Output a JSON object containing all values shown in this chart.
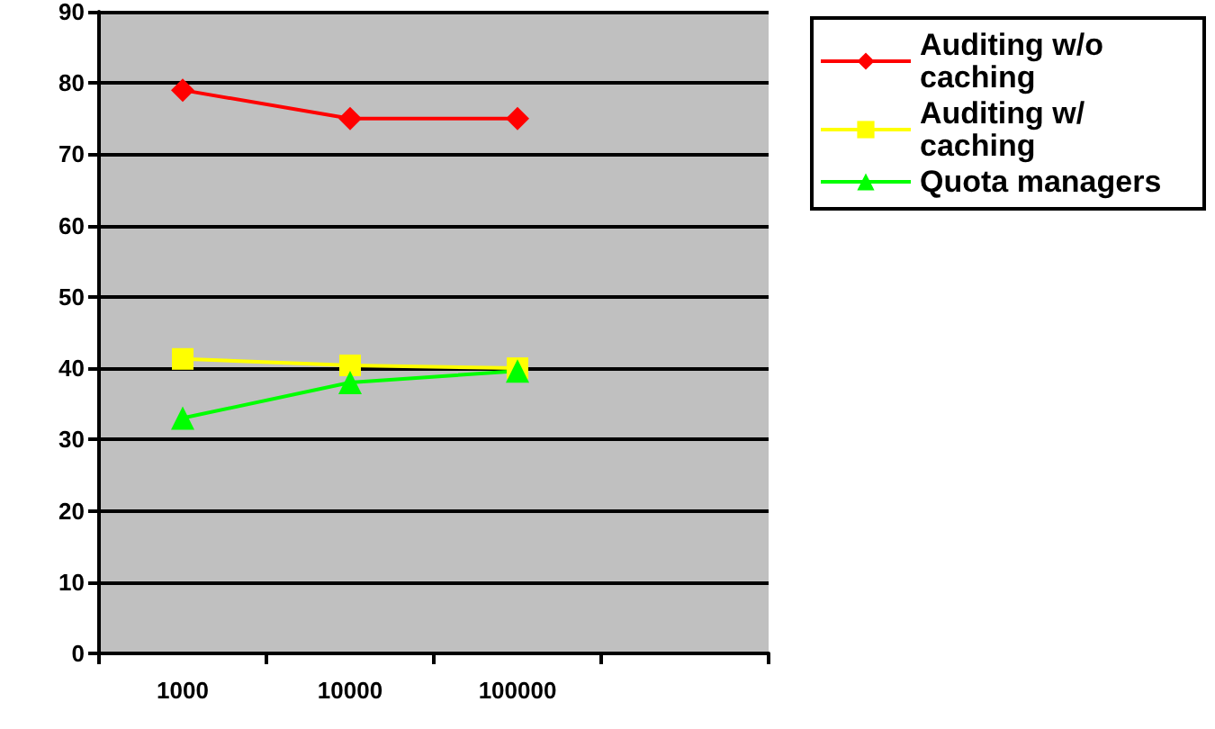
{
  "chart_data": {
    "type": "line",
    "categories": [
      "1000",
      "10000",
      "100000",
      null
    ],
    "series": [
      {
        "name": "Auditing w/o caching",
        "color": "#ff0000",
        "marker": "diamond",
        "values": [
          79,
          75,
          75,
          null
        ]
      },
      {
        "name": "Auditing w/ caching",
        "color": "#ffff00",
        "marker": "square",
        "values": [
          41.3,
          40.4,
          40,
          null
        ]
      },
      {
        "name": "Quota managers",
        "color": "#00ff00",
        "marker": "triangle",
        "values": [
          33,
          38,
          39.6,
          null
        ]
      }
    ],
    "ylim": [
      0,
      90
    ],
    "yticks": [
      0,
      10,
      20,
      30,
      40,
      50,
      60,
      70,
      80,
      90
    ],
    "grid": "y",
    "legend": "top right"
  }
}
